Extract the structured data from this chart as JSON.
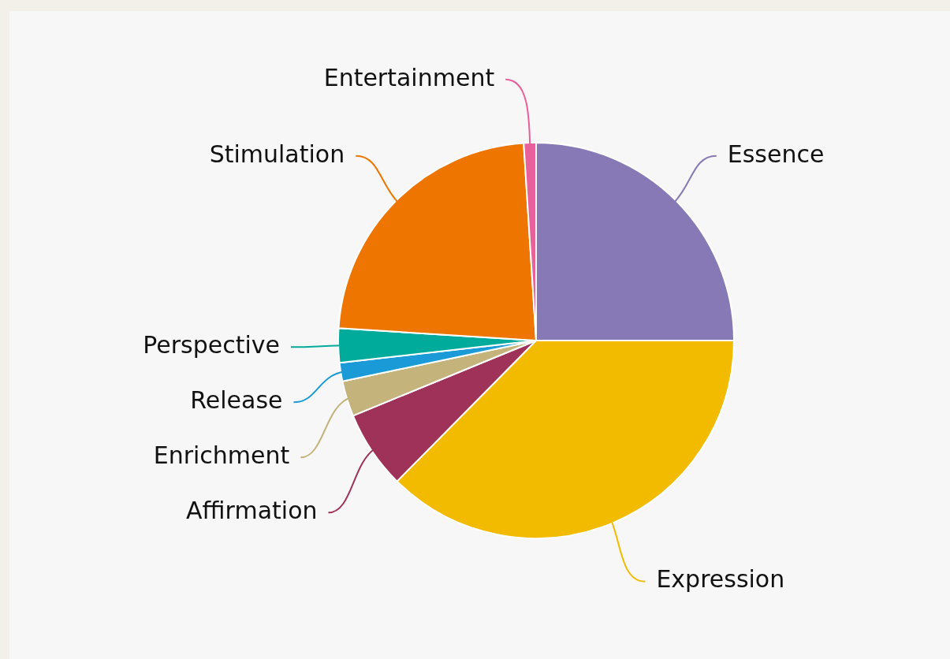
{
  "chart_data": {
    "type": "pie",
    "categories": [
      "Essence",
      "Expression",
      "Affirmation",
      "Enrichment",
      "Release",
      "Perspective",
      "Stimulation",
      "Entertainment"
    ],
    "values": [
      25,
      37.4,
      6.4,
      2.9,
      1.5,
      2.8,
      23,
      1.0
    ],
    "colors": [
      "#8779b5",
      "#f2bb00",
      "#9e3258",
      "#c4b47c",
      "#1a9ad6",
      "#00ab9c",
      "#ee7500",
      "#e8619a"
    ],
    "legend": false
  }
}
